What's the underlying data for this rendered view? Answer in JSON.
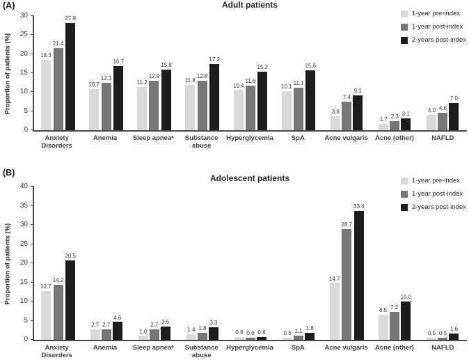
{
  "chart_data": [
    {
      "type": "bar",
      "panel_label": "(A)",
      "title": "Adult patients",
      "ylabel": "Proportion of patients (%)",
      "ylim": [
        0,
        30
      ],
      "yticks": [
        0,
        5,
        10,
        15,
        20,
        25,
        30
      ],
      "grid": false,
      "legend_position": "top-right",
      "value_labels": true,
      "categories": [
        [
          "Anxiety",
          "Disorders"
        ],
        [
          "Anemia"
        ],
        [
          "Sleep apneaᵃ"
        ],
        [
          "Substance",
          "abuse"
        ],
        [
          "Hyperglycemia"
        ],
        [
          "SpA"
        ],
        [
          "Acne vulgaris"
        ],
        [
          "Acne (other)"
        ],
        [
          "NAFLD"
        ]
      ],
      "series": [
        {
          "name": "1-year pre-index",
          "color": "#d9d9d9",
          "values": [
            18.3,
            10.7,
            11.2,
            11.8,
            10.4,
            10.1,
            3.6,
            1.7,
            4.0
          ]
        },
        {
          "name": "1-year post-index",
          "color": "#767676",
          "values": [
            21.4,
            12.3,
            12.9,
            12.8,
            11.6,
            11.1,
            7.4,
            2.3,
            4.6
          ]
        },
        {
          "name": "2-years post-index",
          "color": "#1c1c1c",
          "values": [
            27.9,
            16.7,
            15.8,
            17.2,
            15.2,
            15.6,
            9.1,
            3.1,
            7.0
          ]
        }
      ]
    },
    {
      "type": "bar",
      "panel_label": "(B)",
      "title": "Adolescent patients",
      "ylabel": "Proportion of patients (%)",
      "ylim": [
        0,
        40
      ],
      "yticks": [
        0,
        5,
        10,
        15,
        20,
        25,
        30,
        35,
        40
      ],
      "grid": false,
      "legend_position": "top-right",
      "value_labels": true,
      "categories": [
        [
          "Anxiety",
          "Disorders"
        ],
        [
          "Anemia"
        ],
        [
          "Sleep apneaᵃ"
        ],
        [
          "Substance",
          "abuse"
        ],
        [
          "Hyperglycemia"
        ],
        [
          "SpA"
        ],
        [
          "Acne vulgaris"
        ],
        [
          "Acne (other)"
        ],
        [
          "NAFLD"
        ]
      ],
      "series": [
        {
          "name": "1-year pre-index",
          "color": "#d9d9d9",
          "values": [
            12.7,
            2.7,
            1.0,
            1.4,
            0.8,
            0.5,
            14.7,
            6.5,
            0.5
          ]
        },
        {
          "name": "1-year post-index",
          "color": "#767676",
          "values": [
            14.2,
            2.7,
            2.7,
            1.8,
            0.6,
            1.1,
            28.7,
            7.2,
            0.5
          ]
        },
        {
          "name": "2-years post-index",
          "color": "#1c1c1c",
          "values": [
            20.5,
            4.6,
            3.5,
            3.3,
            0.8,
            1.8,
            33.4,
            10.0,
            1.6
          ]
        }
      ]
    }
  ]
}
